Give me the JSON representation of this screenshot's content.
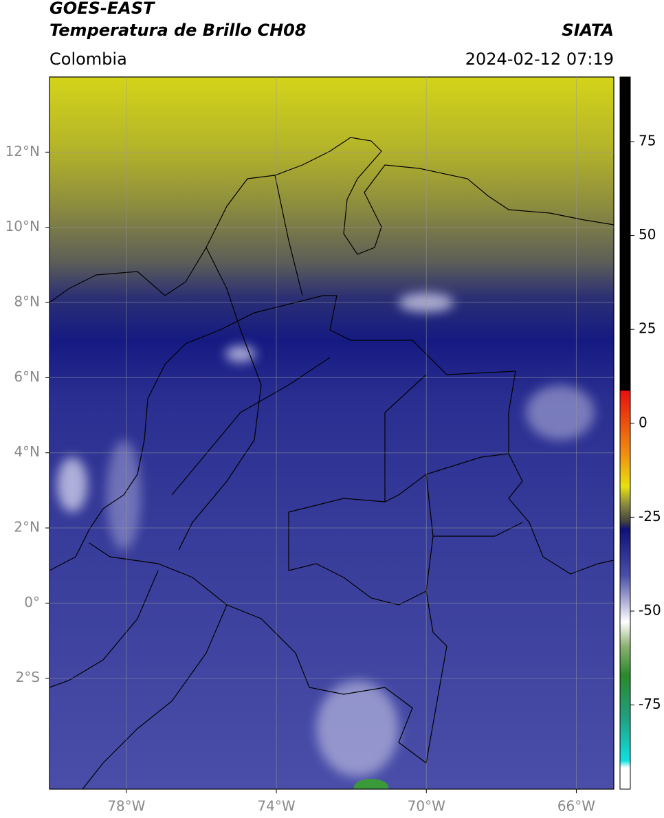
{
  "header": {
    "title": "GOES-EAST",
    "subtitle": "Temperatura de Brillo CH08",
    "source": "SIATA",
    "region": "Colombia",
    "datetime": "2024-02-12 07:19"
  },
  "map": {
    "xlim": [
      -80.05,
      -65.0
    ],
    "ylim": [
      -4.95,
      14.0
    ],
    "grid": true,
    "xticks": [
      {
        "value": -78,
        "label": "78°W"
      },
      {
        "value": -74,
        "label": "74°W"
      },
      {
        "value": -70,
        "label": "70°W"
      },
      {
        "value": -66,
        "label": "66°W"
      }
    ],
    "yticks": [
      {
        "value": 12,
        "label": "12°N"
      },
      {
        "value": 10,
        "label": "10°N"
      },
      {
        "value": 8,
        "label": "8°N"
      },
      {
        "value": 6,
        "label": "6°N"
      },
      {
        "value": 4,
        "label": "4°N"
      },
      {
        "value": 2,
        "label": "2°N"
      },
      {
        "value": 0,
        "label": "0°"
      },
      {
        "value": -2,
        "label": "2°S"
      }
    ]
  },
  "colorbar": {
    "lim": [
      -97.4,
      92.2
    ],
    "ticks": [
      75,
      50,
      25,
      0,
      -25,
      -50,
      -75
    ]
  }
}
